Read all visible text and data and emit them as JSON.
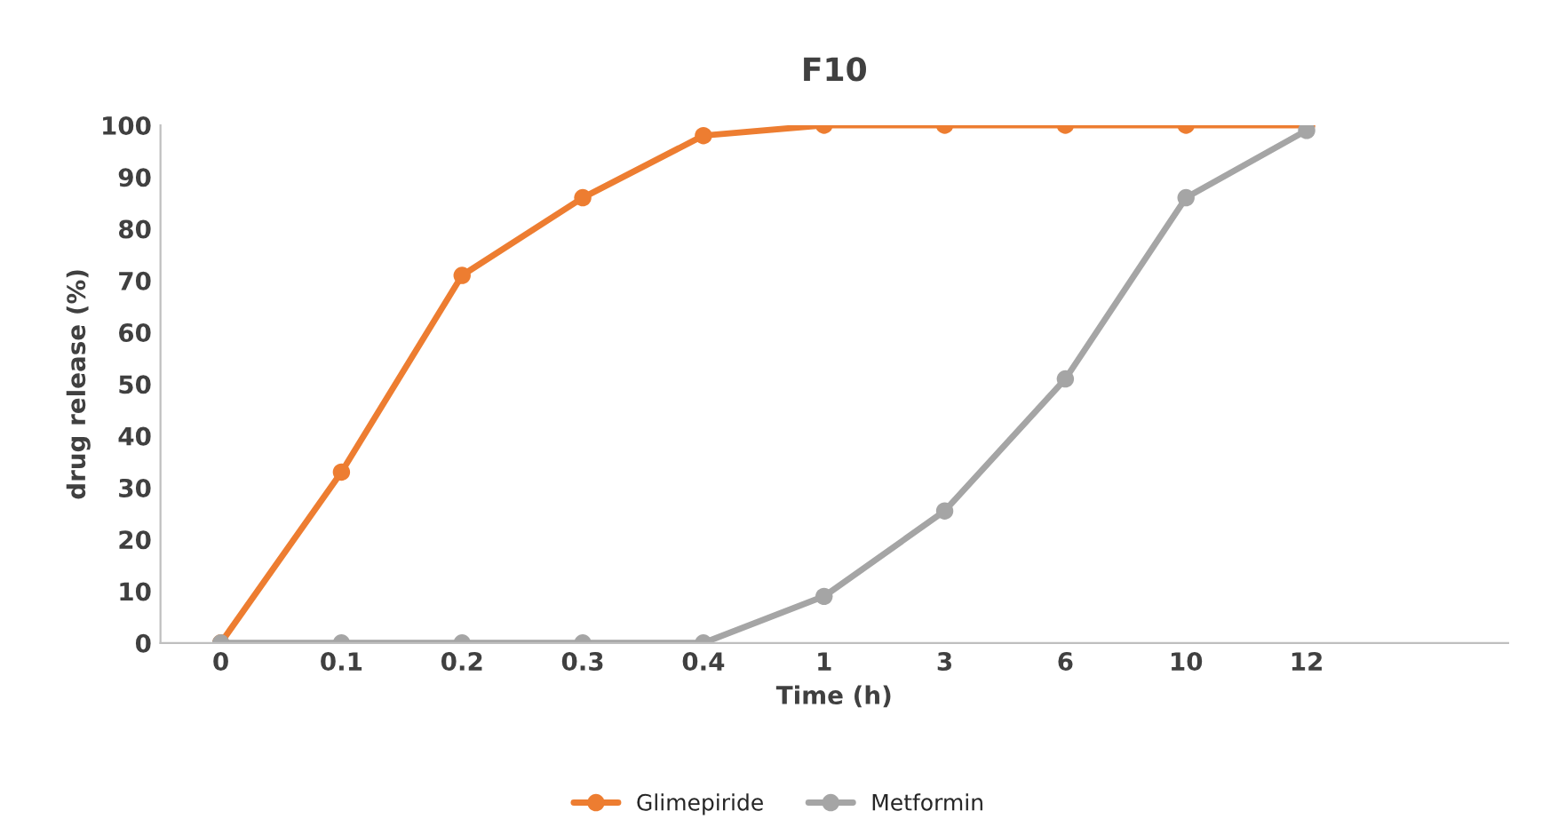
{
  "chart_data": {
    "type": "line",
    "title": "F10",
    "xlabel": "Time (h)",
    "ylabel": "drug release (%)",
    "categories": [
      "0",
      "0.1",
      "0.2",
      "0.3",
      "0.4",
      "1",
      "3",
      "6",
      "10",
      "12"
    ],
    "series": [
      {
        "name": "Glimepiride",
        "color": "#ed7d31",
        "values": [
          0,
          33,
          71,
          86,
          98,
          100,
          100,
          100,
          100,
          100
        ]
      },
      {
        "name": "Metformin",
        "color": "#a5a5a5",
        "values": [
          0,
          0,
          0,
          0,
          0,
          9,
          25.5,
          51,
          86,
          99
        ]
      }
    ],
    "ylim": [
      0,
      100
    ],
    "yticks": [
      0,
      10,
      20,
      30,
      40,
      50,
      60,
      70,
      80,
      90,
      100
    ],
    "grid": false,
    "legend": "bottom",
    "marker": "circle",
    "line_style": "solid"
  }
}
